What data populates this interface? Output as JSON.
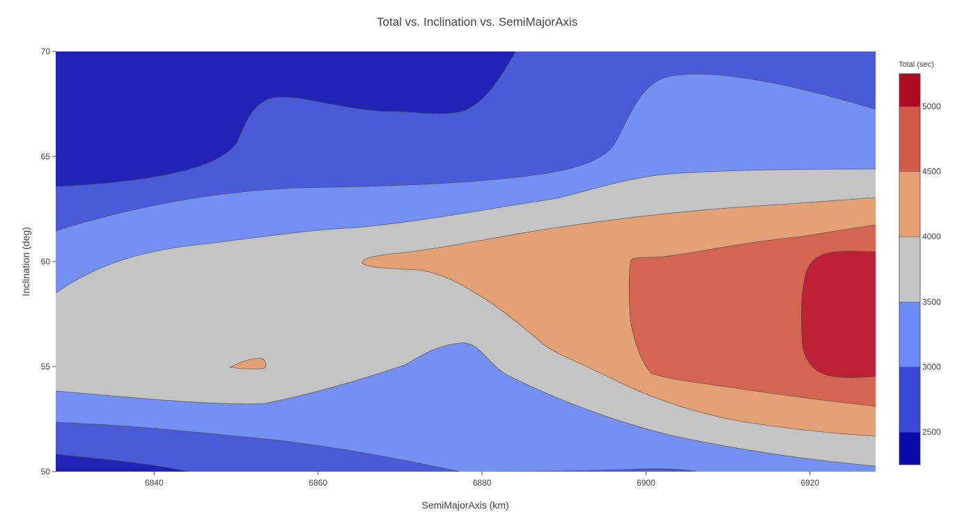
{
  "chart_data": {
    "type": "contour",
    "title": "Total vs. Inclination vs. SemiMajorAxis",
    "xlabel": "SemiMajorAxis (km)",
    "ylabel": "Inclination (deg)",
    "xlim": [
      6828,
      6928
    ],
    "ylim": [
      50,
      70
    ],
    "x_ticks": [
      "6840",
      "6860",
      "6880",
      "6900",
      "6920"
    ],
    "y_ticks": [
      "50",
      "55",
      "60",
      "65",
      "70"
    ],
    "colorbar": {
      "title": "Total (sec)",
      "range": [
        2250,
        5250
      ],
      "tick_values": [
        2500,
        3000,
        3500,
        4000,
        4500,
        5000
      ],
      "tick_labels": [
        "2500",
        "3000",
        "3500",
        "4000",
        "4500",
        "5000"
      ],
      "levels": [
        {
          "range": [
            2250,
            2500
          ],
          "color": "#0a0aa8"
        },
        {
          "range": [
            2500,
            3000
          ],
          "color": "#3c4bd7"
        },
        {
          "range": [
            3000,
            3500
          ],
          "color": "#6e8cf5"
        },
        {
          "range": [
            3500,
            4000
          ],
          "color": "#c4c4c4"
        },
        {
          "range": [
            4000,
            4500
          ],
          "color": "#e6a074"
        },
        {
          "range": [
            4500,
            5000
          ],
          "color": "#d25a46"
        },
        {
          "range": [
            5000,
            5250
          ],
          "color": "#b00a1e"
        }
      ]
    },
    "level_colors": {
      "below_2500": "#1f24b4",
      "2500_3000": "#4a5bd8",
      "3000_3500": "#7490f3",
      "3500_4000": "#c4c4c4",
      "4000_4500": "#e5a176",
      "4500_5000": "#d46551",
      "above_5000": "#bb2034"
    }
  }
}
